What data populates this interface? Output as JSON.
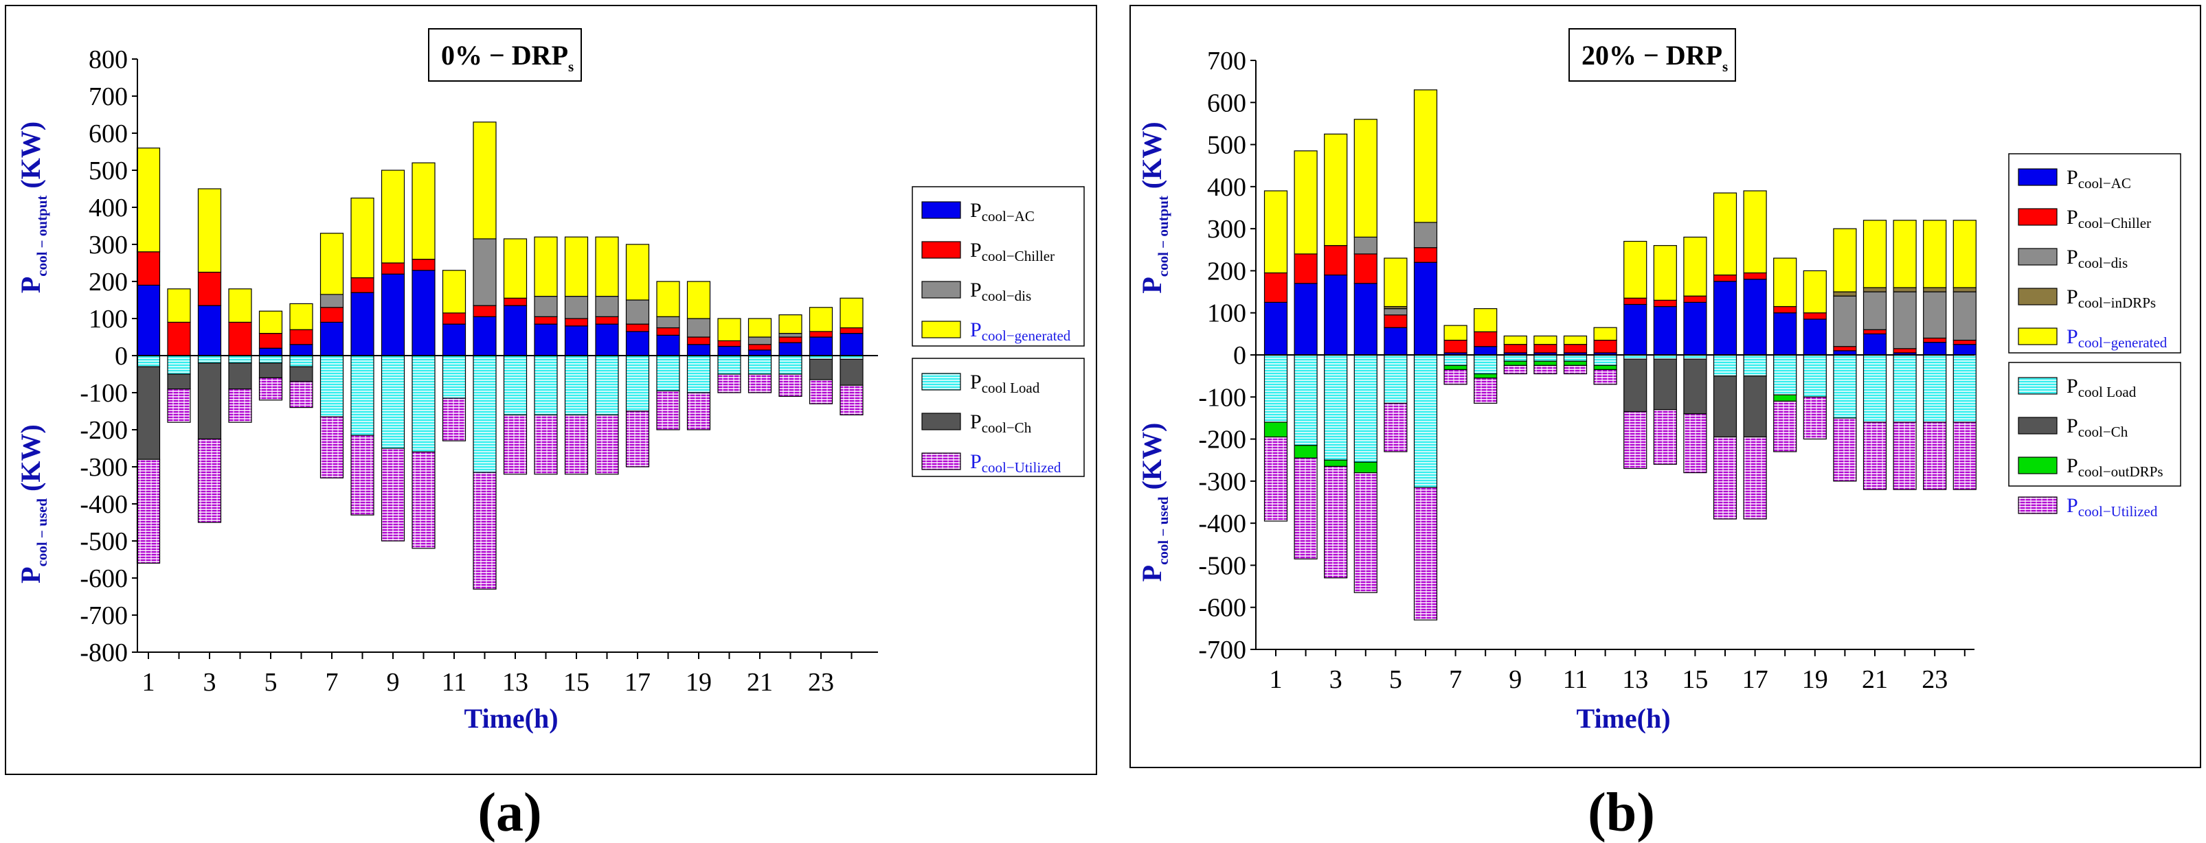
{
  "chart_data": [
    {
      "type": "bar",
      "stacked": true,
      "title": "0% − DRP",
      "title_sub": "s",
      "caption": "(a)",
      "xlabel": "Time(h)",
      "ylabel_pos": "P",
      "ylabel_pos_sub": "cool − output",
      "ylabel_pos_unit": " (KW)",
      "ylabel_neg": "P",
      "ylabel_neg_sub": "cool − used",
      "ylabel_neg_unit": " (KW)",
      "ylim": [
        -800,
        800
      ],
      "yticks": [
        "800",
        "700",
        "600",
        "500",
        "400",
        "300",
        "200",
        "100",
        "0",
        "-100",
        "-200",
        "-300",
        "-400",
        "-500",
        "-600",
        "-700",
        "-800"
      ],
      "x": [
        1,
        2,
        3,
        4,
        5,
        6,
        7,
        8,
        9,
        10,
        11,
        12,
        13,
        14,
        15,
        16,
        17,
        18,
        19,
        20,
        21,
        22,
        23,
        24
      ],
      "xtick_labels": [
        "1",
        "3",
        "5",
        "7",
        "9",
        "11",
        "13",
        "15",
        "17",
        "19",
        "21",
        "23"
      ],
      "series": [
        {
          "name": "cool−AC",
          "color": "#0000ee",
          "pattern": "solid",
          "values": [
            190,
            0,
            135,
            0,
            20,
            30,
            90,
            170,
            220,
            230,
            85,
            105,
            135,
            85,
            80,
            85,
            65,
            55,
            30,
            25,
            15,
            35,
            50,
            60
          ]
        },
        {
          "name": "cool−Chiller",
          "color": "#ff0000",
          "pattern": "solid",
          "values": [
            90,
            90,
            90,
            90,
            40,
            40,
            40,
            40,
            30,
            30,
            30,
            30,
            20,
            20,
            20,
            20,
            20,
            20,
            20,
            15,
            15,
            15,
            15,
            15
          ]
        },
        {
          "name": "cool−dis",
          "color": "#8c8c8c",
          "pattern": "solid",
          "values": [
            0,
            0,
            0,
            0,
            0,
            0,
            35,
            0,
            0,
            0,
            0,
            180,
            0,
            55,
            60,
            55,
            65,
            30,
            50,
            0,
            20,
            10,
            0,
            0
          ]
        },
        {
          "name": "cool−generated",
          "color": "#ffff00",
          "pattern": "solid",
          "values": [
            280,
            90,
            225,
            90,
            60,
            70,
            165,
            215,
            250,
            260,
            115,
            315,
            160,
            160,
            160,
            160,
            150,
            95,
            100,
            60,
            50,
            50,
            65,
            80
          ]
        },
        {
          "name": "cool Load",
          "color": "#33eeee",
          "pattern": "hatch-cyan",
          "values": [
            -30,
            -50,
            -20,
            -20,
            -20,
            -30,
            -165,
            -215,
            -250,
            -260,
            -115,
            -315,
            -160,
            -160,
            -160,
            -160,
            -150,
            -95,
            -100,
            -50,
            -50,
            -50,
            -10,
            -10
          ]
        },
        {
          "name": "cool−Ch",
          "color": "#555555",
          "pattern": "solid",
          "values": [
            -250,
            -40,
            -205,
            -70,
            -40,
            -40,
            0,
            0,
            0,
            0,
            0,
            0,
            0,
            0,
            0,
            0,
            0,
            0,
            0,
            0,
            0,
            0,
            -55,
            -70
          ]
        },
        {
          "name": "cool−Utilized",
          "color": "#b000d0",
          "pattern": "hatch-purple",
          "values": [
            -280,
            -90,
            -225,
            -90,
            -60,
            -70,
            -165,
            -215,
            -250,
            -260,
            -115,
            -315,
            -160,
            -160,
            -160,
            -160,
            -150,
            -105,
            -100,
            -50,
            -50,
            -60,
            -65,
            -80
          ]
        }
      ],
      "legend_placement": "right",
      "grid": false
    },
    {
      "type": "bar",
      "stacked": true,
      "title": "20% − DRP",
      "title_sub": "s",
      "caption": "(b)",
      "xlabel": "Time(h)",
      "ylabel_pos": "P",
      "ylabel_pos_sub": "cool − output",
      "ylabel_pos_unit": " (KW)",
      "ylabel_neg": "P",
      "ylabel_neg_sub": "cool − used",
      "ylabel_neg_unit": " (KW)",
      "ylim": [
        -700,
        700
      ],
      "yticks": [
        "700",
        "600",
        "500",
        "400",
        "300",
        "200",
        "100",
        "0",
        "-100",
        "-200",
        "-300",
        "-400",
        "-500",
        "-600",
        "-700"
      ],
      "x": [
        1,
        2,
        3,
        4,
        5,
        6,
        7,
        8,
        9,
        10,
        11,
        12,
        13,
        14,
        15,
        16,
        17,
        18,
        19,
        20,
        21,
        22,
        23,
        24
      ],
      "xtick_labels": [
        "1",
        "3",
        "5",
        "7",
        "9",
        "11",
        "13",
        "15",
        "17",
        "19",
        "21",
        "23"
      ],
      "series": [
        {
          "name": "cool−AC",
          "color": "#0000ee",
          "pattern": "solid",
          "values": [
            125,
            170,
            190,
            170,
            65,
            220,
            5,
            20,
            5,
            5,
            5,
            5,
            120,
            115,
            125,
            175,
            180,
            100,
            85,
            10,
            50,
            5,
            30,
            25
          ]
        },
        {
          "name": "cool−Chiller",
          "color": "#ff0000",
          "pattern": "solid",
          "values": [
            70,
            70,
            70,
            70,
            30,
            35,
            30,
            35,
            20,
            20,
            20,
            30,
            15,
            15,
            15,
            15,
            15,
            15,
            15,
            10,
            10,
            10,
            10,
            10
          ]
        },
        {
          "name": "cool−dis",
          "color": "#8c8c8c",
          "pattern": "solid",
          "values": [
            0,
            0,
            0,
            40,
            15,
            60,
            0,
            0,
            0,
            0,
            0,
            0,
            0,
            0,
            0,
            0,
            0,
            0,
            0,
            120,
            90,
            135,
            110,
            115
          ]
        },
        {
          "name": "cool−inDRPs",
          "color": "#8c7a40",
          "pattern": "solid",
          "values": [
            0,
            0,
            0,
            0,
            5,
            0,
            0,
            0,
            0,
            0,
            0,
            0,
            0,
            0,
            0,
            0,
            0,
            0,
            0,
            10,
            10,
            10,
            10,
            10
          ]
        },
        {
          "name": "cool−generated",
          "color": "#ffff00",
          "pattern": "solid",
          "values": [
            195,
            245,
            265,
            280,
            115,
            315,
            35,
            55,
            20,
            20,
            20,
            30,
            135,
            130,
            140,
            195,
            195,
            115,
            100,
            150,
            160,
            160,
            160,
            160
          ]
        },
        {
          "name": "cool Load",
          "color": "#33eeee",
          "pattern": "hatch-cyan",
          "values": [
            -160,
            -215,
            -250,
            -255,
            -115,
            -315,
            -25,
            -45,
            -15,
            -15,
            -15,
            -25,
            -10,
            -10,
            -10,
            -50,
            -50,
            -95,
            -100,
            -150,
            -160,
            -160,
            -160,
            -160
          ]
        },
        {
          "name": "cool−Ch",
          "color": "#555555",
          "pattern": "solid",
          "values": [
            0,
            0,
            0,
            0,
            0,
            0,
            0,
            0,
            0,
            0,
            0,
            0,
            -125,
            -120,
            -130,
            -145,
            -145,
            0,
            0,
            0,
            0,
            0,
            0,
            0
          ]
        },
        {
          "name": "cool−outDRPs",
          "color": "#00dd00",
          "pattern": "solid",
          "values": [
            -35,
            -30,
            -15,
            -25,
            0,
            0,
            -10,
            -10,
            -10,
            -10,
            -10,
            -10,
            0,
            0,
            0,
            0,
            0,
            -15,
            0,
            0,
            0,
            0,
            0,
            0
          ]
        },
        {
          "name": "cool−Utilized",
          "color": "#b000d0",
          "pattern": "hatch-purple",
          "values": [
            -200,
            -240,
            -265,
            -285,
            -115,
            -315,
            -35,
            -60,
            -20,
            -20,
            -20,
            -35,
            -135,
            -130,
            -140,
            -195,
            -195,
            -120,
            -100,
            -150,
            -160,
            -160,
            -160,
            -160
          ]
        }
      ],
      "legend_placement": "right",
      "grid": false
    }
  ]
}
